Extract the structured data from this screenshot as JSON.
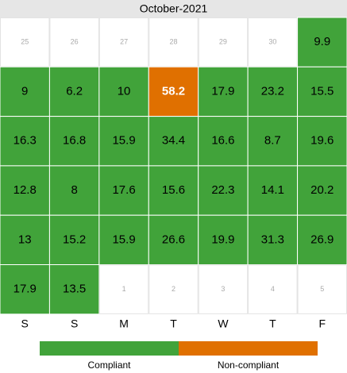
{
  "chart_data": {
    "type": "calendar",
    "title": "October-2021",
    "weekdays": [
      "S",
      "S",
      "M",
      "T",
      "W",
      "T",
      "F"
    ],
    "days_before": [
      25,
      26,
      27,
      28,
      29,
      30
    ],
    "values": [
      9.9,
      9,
      6.2,
      10,
      58.2,
      17.9,
      23.2,
      15.5,
      16.3,
      16.8,
      15.9,
      34.4,
      16.6,
      8.7,
      19.6,
      12.8,
      8,
      17.6,
      15.6,
      22.3,
      14.1,
      20.2,
      13,
      15.2,
      15.9,
      26.6,
      19.9,
      31.3,
      26.9,
      17.9,
      13.5
    ],
    "status": [
      "Compliant",
      "Compliant",
      "Compliant",
      "Compliant",
      "Non-compliant",
      "Compliant",
      "Compliant",
      "Compliant",
      "Compliant",
      "Compliant",
      "Compliant",
      "Compliant",
      "Compliant",
      "Compliant",
      "Compliant",
      "Compliant",
      "Compliant",
      "Compliant",
      "Compliant",
      "Compliant",
      "Compliant",
      "Compliant",
      "Compliant",
      "Compliant",
      "Compliant",
      "Compliant",
      "Compliant",
      "Compliant",
      "Compliant",
      "Compliant",
      "Compliant"
    ],
    "days_after": [
      1,
      2,
      3,
      4,
      5
    ],
    "legend": [
      {
        "name": "Compliant",
        "color": "#41a33a"
      },
      {
        "name": "Non-compliant",
        "color": "#e07000"
      }
    ]
  }
}
